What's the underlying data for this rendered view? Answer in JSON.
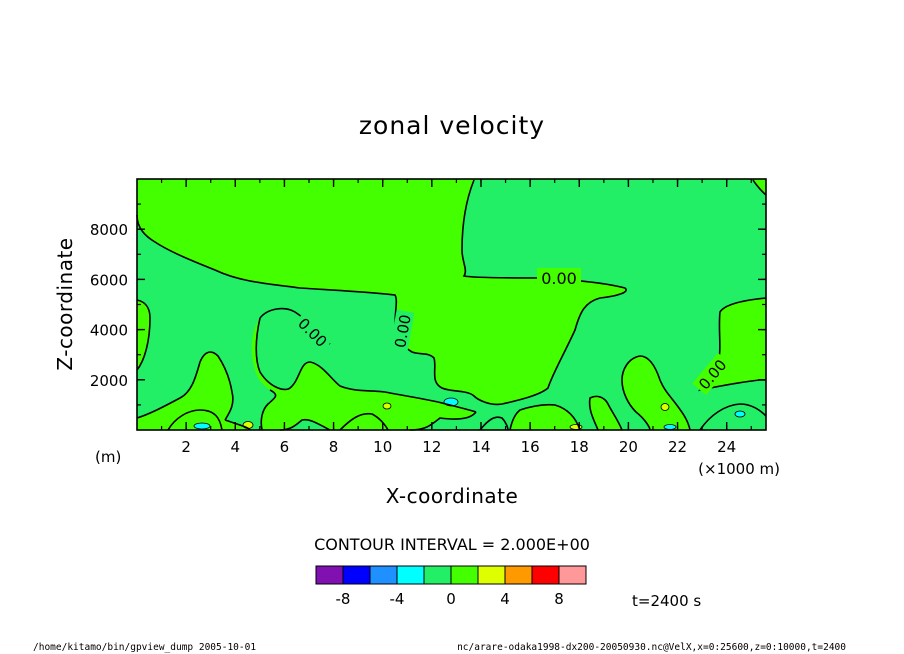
{
  "chart_data": {
    "type": "heatmap",
    "title": "zonal velocity",
    "xlabel": "X-coordinate",
    "ylabel": "Z-coordinate",
    "x_unit": "(×1000 m)",
    "y_unit": "(m)",
    "xlim": [
      0,
      25.6
    ],
    "ylim": [
      0,
      10000
    ],
    "x_ticks": [
      2,
      4,
      6,
      8,
      10,
      12,
      14,
      16,
      18,
      20,
      22,
      24
    ],
    "y_ticks": [
      2000,
      4000,
      6000,
      8000
    ],
    "contour_interval_label": "CONTOUR INTERVAL = 2.000E+00",
    "time_label": "t=2400 s",
    "contour_labels": [
      {
        "text": "0.00",
        "x": 16.5,
        "z": 5950
      },
      {
        "text": "0.00",
        "x": 7.1,
        "z": 3800
      },
      {
        "text": "0.00",
        "x": 10.8,
        "z": 3900
      },
      {
        "text": "0.00",
        "x": 23.2,
        "z": 2200
      }
    ],
    "levels": {
      "bounds": [
        -10,
        -8,
        -6,
        -4,
        -2,
        0,
        2,
        4,
        6,
        8,
        10
      ],
      "colors": [
        "#8010b0",
        "#0000ff",
        "#1e90ff",
        "#00ffff",
        "#22ee66",
        "#44ff00",
        "#ddff00",
        "#ff9900",
        "#ff0000",
        "#ff9999"
      ],
      "tick_labels": [
        "-8",
        "-4",
        "0",
        "4",
        "8"
      ],
      "tick_values": [
        -8,
        -4,
        0,
        4,
        8
      ]
    },
    "colors": {
      "positive_fill": "#44ff00",
      "negative_fill": "#22ee66"
    }
  },
  "footer": {
    "left": "/home/kitamo/bin/gpview_dump   2005-10-01",
    "right": "nc/arare-odaka1998-dx200-20050930.nc@VelX,x=0:25600,z=0:10000,t=2400"
  }
}
